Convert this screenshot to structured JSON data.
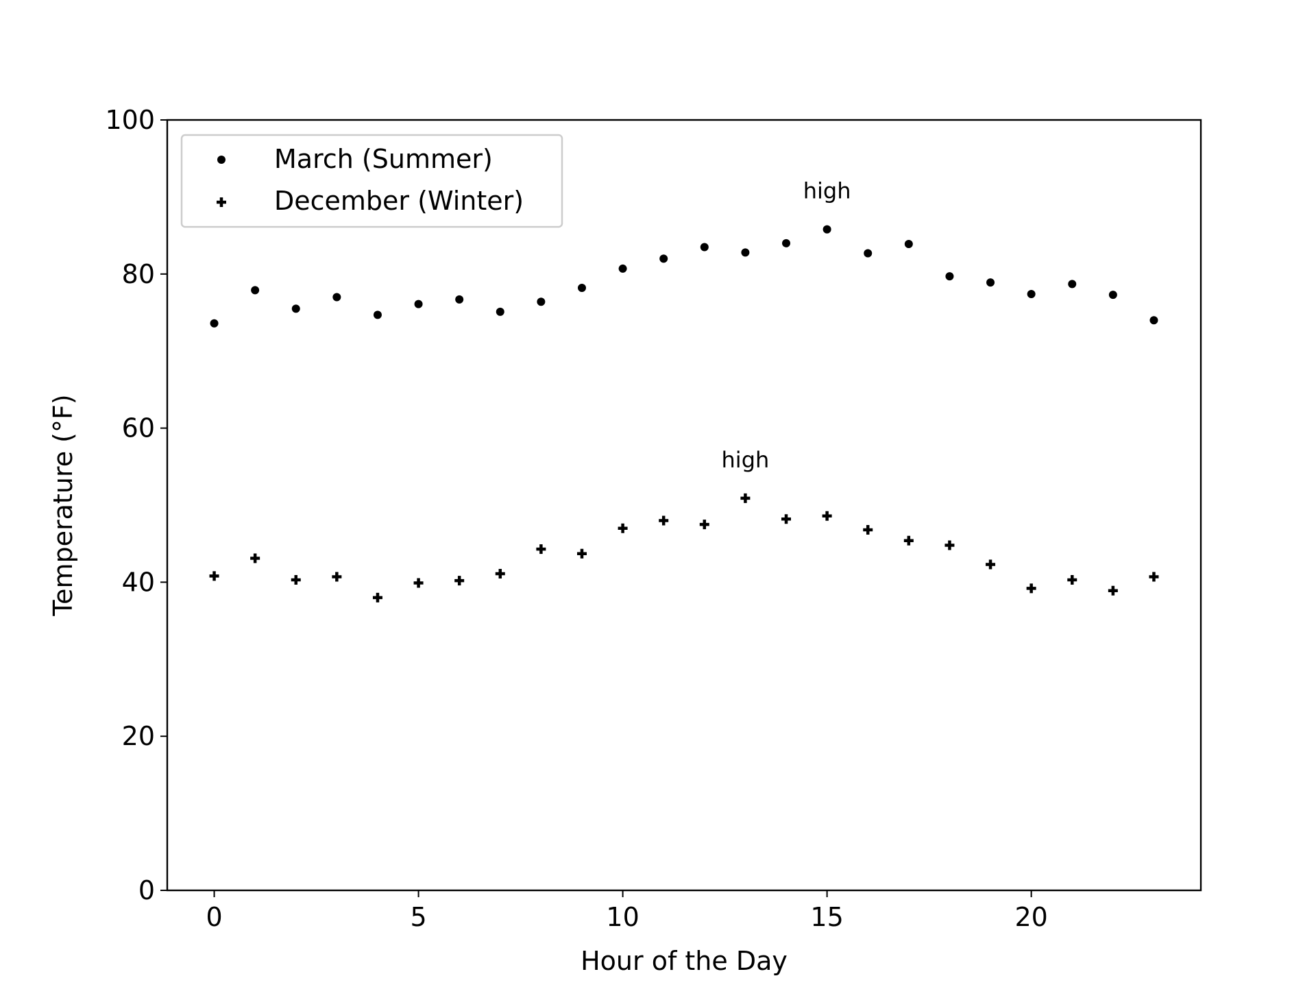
{
  "chart_data": {
    "type": "scatter",
    "title": "",
    "xlabel": "Hour of the Day",
    "ylabel": "Temperature (°F)",
    "xlim": [
      -1.15,
      24.15
    ],
    "ylim": [
      0,
      100
    ],
    "xticks": [
      0,
      5,
      10,
      15,
      20
    ],
    "yticks": [
      0,
      20,
      40,
      60,
      80,
      100
    ],
    "grid": false,
    "legend_position": "upper left",
    "x": [
      0,
      1,
      2,
      3,
      4,
      5,
      6,
      7,
      8,
      9,
      10,
      11,
      12,
      13,
      14,
      15,
      16,
      17,
      18,
      19,
      20,
      21,
      22,
      23
    ],
    "series": [
      {
        "name": "March (Summer)",
        "marker": "dot",
        "color": "#000000",
        "values": [
          73.6,
          77.9,
          75.5,
          77.0,
          74.7,
          76.1,
          76.7,
          75.1,
          76.4,
          78.2,
          80.7,
          82.0,
          83.5,
          82.8,
          84.0,
          85.8,
          82.7,
          83.9,
          79.7,
          78.9,
          77.4,
          78.7,
          77.3,
          74.0
        ],
        "annotation": {
          "text": "high",
          "x": 15,
          "y": 85.8
        }
      },
      {
        "name": "December (Winter)",
        "marker": "plus",
        "color": "#000000",
        "values": [
          40.8,
          43.1,
          40.3,
          40.7,
          38.0,
          39.9,
          40.2,
          41.1,
          44.3,
          43.7,
          47.0,
          48.0,
          47.5,
          50.9,
          48.2,
          48.6,
          46.8,
          45.4,
          44.8,
          42.3,
          39.2,
          40.3,
          38.9,
          40.7
        ],
        "annotation": {
          "text": "high",
          "x": 13,
          "y": 50.9
        }
      }
    ]
  }
}
